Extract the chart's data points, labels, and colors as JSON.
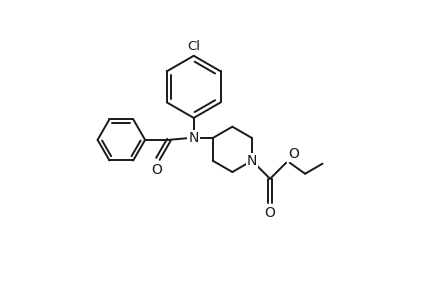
{
  "background_color": "#ffffff",
  "line_color": "#1a1a1a",
  "line_width": 1.4,
  "figsize": [
    4.24,
    2.98
  ],
  "dpi": 100,
  "xlim": [
    0,
    10
  ],
  "ylim": [
    0,
    8
  ]
}
